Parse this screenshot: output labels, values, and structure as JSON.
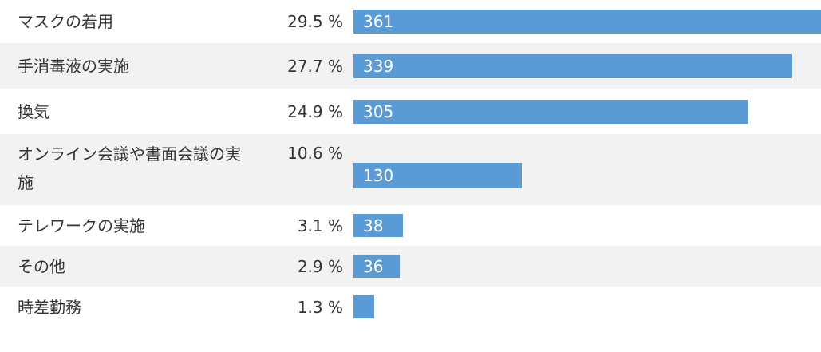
{
  "chart_data": {
    "type": "bar",
    "orientation": "horizontal",
    "categories": [
      "マスクの着用",
      "手消毒液の実施",
      "換気",
      "オンライン会議や書面会議の実施",
      "テレワークの実施",
      "その他",
      "時差勤務"
    ],
    "values": [
      361,
      339,
      305,
      130,
      38,
      36,
      16
    ],
    "value_labels": [
      "361",
      "339",
      "305",
      "130",
      "38",
      "36",
      ""
    ],
    "percentages": [
      "29.5 %",
      "27.7 %",
      "24.9 %",
      "10.6 %",
      "3.1 %",
      "2.9 %",
      "1.3 %"
    ],
    "bar_color": "#5b9bd5",
    "alt_row_color": "#f2f2f2",
    "grid": false,
    "legend": "none"
  }
}
